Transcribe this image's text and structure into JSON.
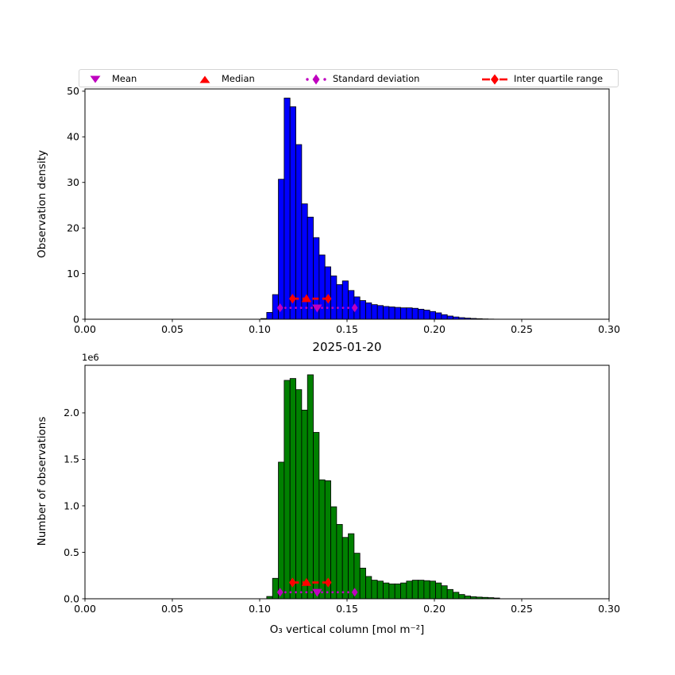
{
  "legend": {
    "items": [
      {
        "label": "Mean",
        "marker": "triangle-down",
        "color": "#bf00bf"
      },
      {
        "label": "Median",
        "marker": "triangle-up",
        "color": "#ff0000"
      },
      {
        "label": "Standard deviation",
        "marker": "diamond-dotted-line",
        "color": "#bf00bf"
      },
      {
        "label": "Inter quartile range",
        "marker": "diamond-dashed-line",
        "color": "#ff0000"
      }
    ]
  },
  "chart_data": [
    {
      "type": "bar",
      "name": "observation-density-histogram",
      "ylabel": "Observation density",
      "bar_color": "#0000ff",
      "edge_color": "#000000",
      "xlim": [
        0.0,
        0.3
      ],
      "ylim": [
        0,
        50.5
      ],
      "bin_start": 0.1007,
      "bin_width": 0.0033333,
      "values": [
        0.15,
        1.5,
        5.4,
        30.7,
        48.5,
        46.6,
        38.3,
        25.3,
        22.4,
        17.9,
        14.1,
        11.5,
        9.5,
        7.6,
        8.4,
        6.3,
        4.9,
        4.1,
        3.6,
        3.2,
        3.0,
        2.8,
        2.7,
        2.6,
        2.5,
        2.5,
        2.4,
        2.2,
        2.0,
        1.7,
        1.4,
        1.0,
        0.7,
        0.5,
        0.35,
        0.25,
        0.18,
        0.12,
        0.07,
        0.04,
        0.02
      ],
      "xticks": [
        0.0,
        0.05,
        0.1,
        0.15,
        0.2,
        0.25,
        0.3
      ],
      "xtick_labels": [
        "0.00",
        "0.05",
        "0.10",
        "0.15",
        "0.20",
        "0.25",
        "0.30"
      ],
      "yticks": [
        0,
        10,
        20,
        30,
        40,
        50
      ],
      "ytick_labels": [
        "0",
        "10",
        "20",
        "30",
        "40",
        "50"
      ],
      "markers": {
        "mean_x": 0.1329,
        "median_x": 0.1268,
        "std_range": [
          0.1117,
          0.1544
        ],
        "std_y": 2.5,
        "iqr_range": [
          0.1188,
          0.1392
        ],
        "iqr_y": 4.5,
        "mean_color": "#bf00bf",
        "median_color": "#ff0000"
      }
    },
    {
      "type": "bar",
      "name": "number-of-observations-histogram",
      "title": "2025-01-20",
      "ylabel": "Number of observations",
      "xlabel": "O₃ vertical column [mol m⁻²]",
      "offset_text": "1e6",
      "bar_color": "#008000",
      "edge_color": "#000000",
      "xlim": [
        0.0,
        0.3
      ],
      "ylim": [
        0,
        2.512
      ],
      "bin_start": 0.1007,
      "bin_width": 0.0033333,
      "values": [
        0,
        0.025,
        0.22,
        1.47,
        2.35,
        2.37,
        2.25,
        2.03,
        2.41,
        1.79,
        1.28,
        1.27,
        0.99,
        0.8,
        0.66,
        0.7,
        0.49,
        0.33,
        0.24,
        0.2,
        0.19,
        0.17,
        0.16,
        0.16,
        0.17,
        0.19,
        0.2,
        0.2,
        0.195,
        0.19,
        0.17,
        0.14,
        0.1,
        0.07,
        0.046,
        0.03,
        0.022,
        0.018,
        0.015,
        0.012,
        0.008
      ],
      "xticks": [
        0.0,
        0.05,
        0.1,
        0.15,
        0.2,
        0.25,
        0.3
      ],
      "xtick_labels": [
        "0.00",
        "0.05",
        "0.10",
        "0.15",
        "0.20",
        "0.25",
        "0.30"
      ],
      "yticks": [
        0,
        0.5,
        1.0,
        1.5,
        2.0
      ],
      "ytick_labels": [
        "0.0",
        "0.5",
        "1.0",
        "1.5",
        "2.0"
      ],
      "markers": {
        "mean_x": 0.1329,
        "median_x": 0.1268,
        "std_range": [
          0.1117,
          0.1544
        ],
        "std_y": 0.07,
        "iqr_range": [
          0.1188,
          0.1392
        ],
        "iqr_y": 0.175,
        "mean_color": "#bf00bf",
        "median_color": "#ff0000"
      }
    }
  ]
}
